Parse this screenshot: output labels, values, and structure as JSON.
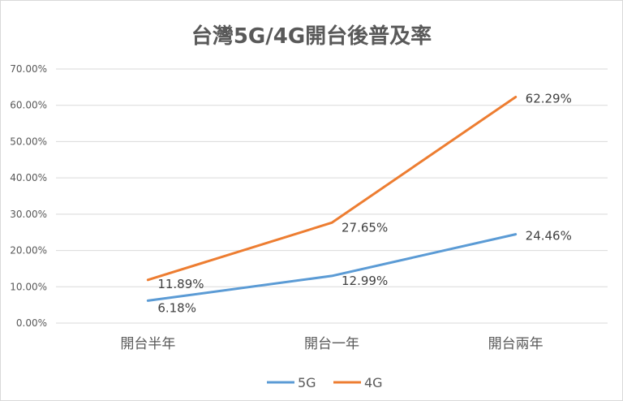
{
  "chart_data": {
    "type": "line",
    "title": "台灣5G/4G開台後普及率",
    "xlabel": "",
    "ylabel": "",
    "categories": [
      "開台半年",
      "開台一年",
      "開台兩年"
    ],
    "series": [
      {
        "name": "5G",
        "values": [
          6.18,
          12.99,
          24.46
        ],
        "labels": [
          "6.18%",
          "12.99%",
          "24.46%"
        ],
        "color": "#5b9bd5"
      },
      {
        "name": "4G",
        "values": [
          11.89,
          27.65,
          62.29
        ],
        "labels": [
          "11.89%",
          "27.65%",
          "62.29%"
        ],
        "color": "#ed7d31"
      }
    ],
    "ylim": [
      0,
      70
    ],
    "yticks": [
      0,
      10,
      20,
      30,
      40,
      50,
      60,
      70
    ],
    "ytick_labels": [
      "0.00%",
      "10.00%",
      "20.00%",
      "30.00%",
      "40.00%",
      "50.00%",
      "60.00%",
      "70.00%"
    ],
    "grid": true,
    "legend": "bottom",
    "gridline_color": "#d9d9d9"
  }
}
